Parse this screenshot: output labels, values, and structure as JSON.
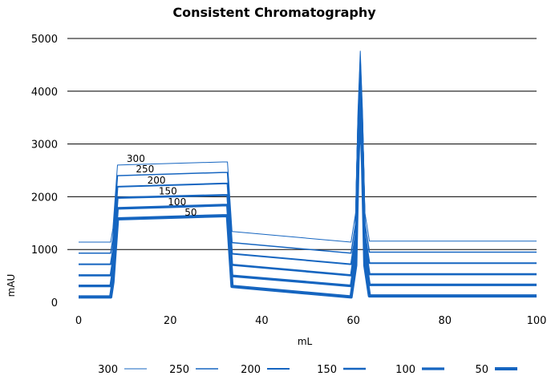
{
  "chart_data": {
    "type": "line",
    "title": "Consistent Chromatography",
    "xlabel": "mL",
    "ylabel": "mAU",
    "xlim": [
      0,
      100
    ],
    "ylim": [
      0,
      5000
    ],
    "x_ticks": [
      0,
      20,
      40,
      60,
      80,
      100
    ],
    "y_ticks": [
      0,
      1000,
      2000,
      3000,
      4000,
      5000
    ],
    "grid": "horizontal",
    "legend_position": "bottom",
    "line_color": "#1565c0",
    "x": [
      0,
      7,
      7.5,
      8.5,
      31.5,
      32.5,
      33.5,
      59.5,
      60.5,
      61,
      61.5,
      62,
      62.5,
      63.5,
      100
    ],
    "series": [
      {
        "name": "300",
        "label_on_plot": "300",
        "values": [
          1140,
          1140,
          1400,
          2600,
          2660,
          2660,
          1340,
          1140,
          1700,
          3600,
          4760,
          3600,
          1700,
          1160,
          1160
        ]
      },
      {
        "name": "250",
        "label_on_plot": "250",
        "values": [
          930,
          930,
          1200,
          2400,
          2460,
          2460,
          1130,
          930,
          1500,
          3400,
          4560,
          3400,
          1500,
          950,
          950
        ]
      },
      {
        "name": "200",
        "label_on_plot": "200",
        "values": [
          720,
          720,
          990,
          2190,
          2250,
          2250,
          920,
          720,
          1300,
          3220,
          4400,
          3220,
          1300,
          740,
          740
        ]
      },
      {
        "name": "150",
        "label_on_plot": "150",
        "values": [
          510,
          510,
          780,
          1980,
          2030,
          2030,
          710,
          510,
          1100,
          3000,
          4230,
          3000,
          1100,
          530,
          530
        ]
      },
      {
        "name": "100",
        "label_on_plot": "100",
        "values": [
          310,
          310,
          580,
          1780,
          1840,
          1840,
          500,
          310,
          900,
          2820,
          4060,
          2820,
          900,
          330,
          330
        ]
      },
      {
        "name": "50",
        "label_on_plot": "50",
        "values": [
          100,
          100,
          380,
          1580,
          1640,
          1640,
          300,
          100,
          700,
          2650,
          3900,
          2650,
          700,
          120,
          120
        ]
      }
    ]
  }
}
